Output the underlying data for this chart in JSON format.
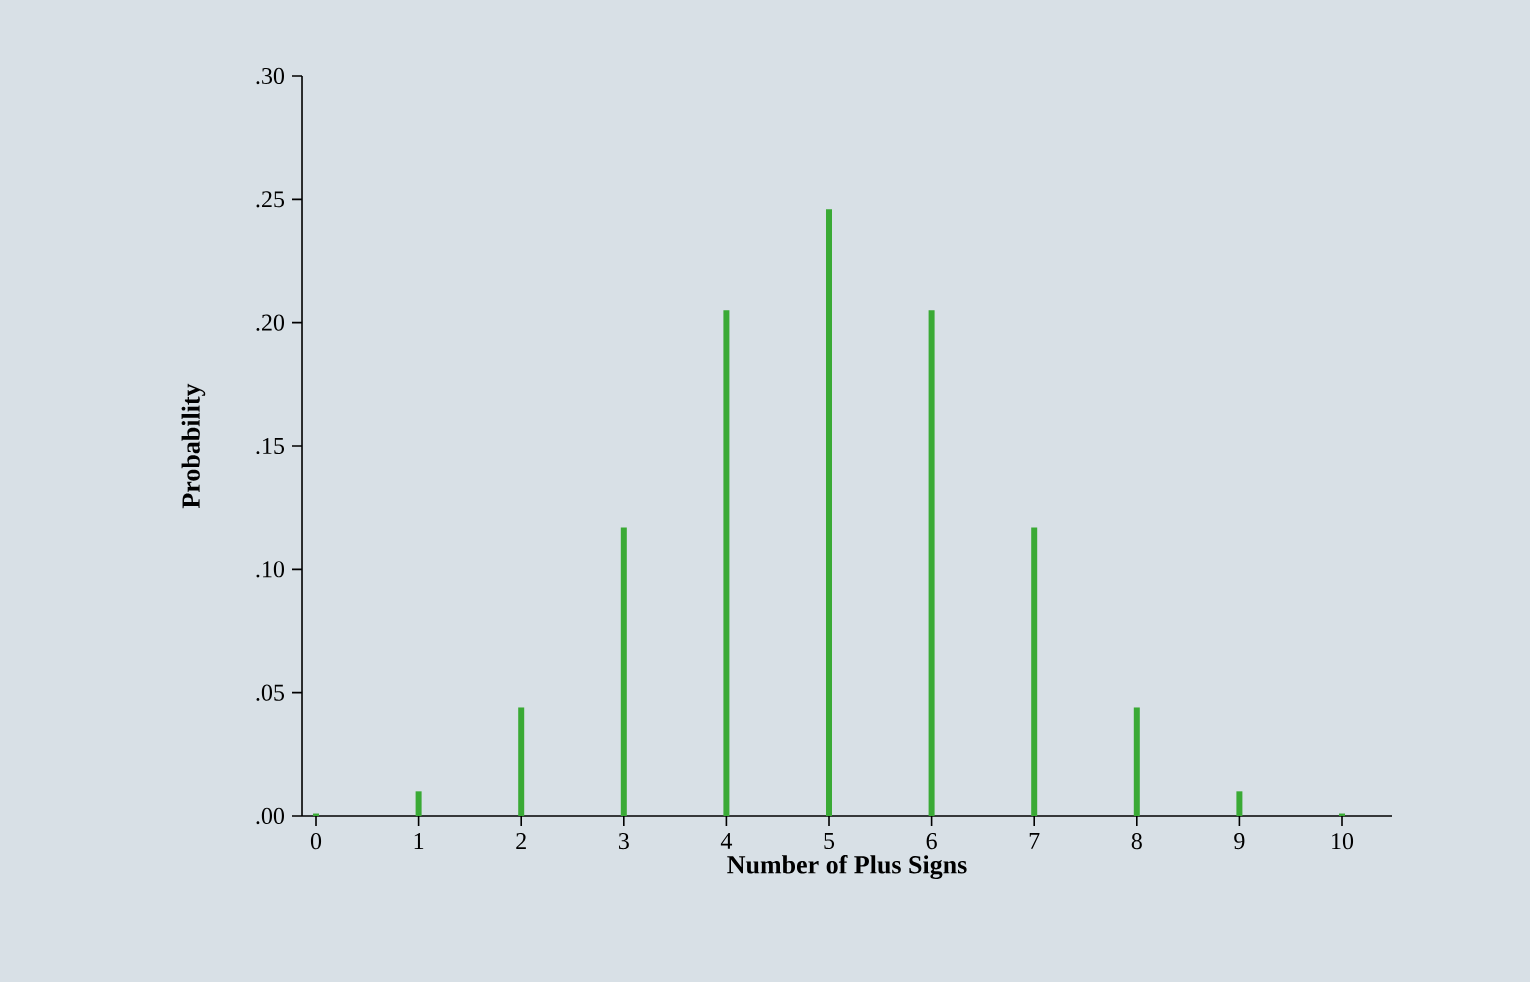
{
  "chart_data": {
    "type": "bar",
    "xlabel": "Number of Plus Signs",
    "ylabel": "Probability",
    "categories": [
      "0",
      "1",
      "2",
      "3",
      "4",
      "5",
      "6",
      "7",
      "8",
      "9",
      "10"
    ],
    "values": [
      0.001,
      0.01,
      0.044,
      0.117,
      0.205,
      0.246,
      0.205,
      0.117,
      0.044,
      0.01,
      0.001
    ],
    "color": "#3aaa35",
    "ylim": [
      0,
      0.3
    ],
    "yticks": [
      {
        "value": 0,
        "label": ".00"
      },
      {
        "value": 0.05,
        "label": ".05"
      },
      {
        "value": 0.1,
        "label": ".10"
      },
      {
        "value": 0.15,
        "label": ".15"
      },
      {
        "value": 0.2,
        "label": ".20"
      },
      {
        "value": 0.25,
        "label": ".25"
      },
      {
        "value": 0.3,
        "label": ".30"
      }
    ],
    "grid": false
  }
}
